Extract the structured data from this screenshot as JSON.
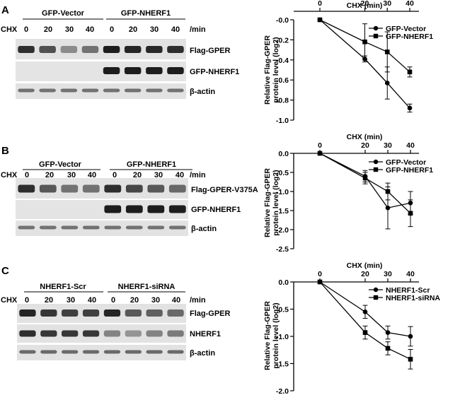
{
  "panels": [
    {
      "label": "A",
      "groups": [
        "GFP-Vector",
        "GFP-NHERF1"
      ],
      "cond_label": "CHX",
      "times": [
        "0",
        "20",
        "30",
        "40",
        "0",
        "20",
        "30",
        "40"
      ],
      "unit": "/min",
      "blots": [
        {
          "label": "Flag-GPER",
          "bg": "#e2e2e2",
          "intensities": [
            0.85,
            0.65,
            0.3,
            0.45,
            0.95,
            0.9,
            0.88,
            0.85
          ]
        },
        {
          "label": "GFP-NHERF1",
          "bg": "#e4e4e4",
          "intensities": [
            0,
            0,
            0,
            0,
            0.95,
            0.95,
            0.95,
            0.95
          ]
        },
        {
          "label": "β-actin",
          "bg": "#e2e2e2",
          "intensities": [
            0.45,
            0.45,
            0.45,
            0.45,
            0.45,
            0.45,
            0.45,
            0.45
          ]
        }
      ]
    },
    {
      "label": "B",
      "groups": [
        "GFP-Vector",
        "GFP-NHERF1"
      ],
      "cond_label": "CHX",
      "times": [
        "0",
        "20",
        "30",
        "40",
        "0",
        "20",
        "30",
        "40"
      ],
      "unit": "/min",
      "blots": [
        {
          "label": "Flag-GPER-V375A",
          "bg": "#e2e2e2",
          "intensities": [
            0.85,
            0.6,
            0.45,
            0.45,
            0.85,
            0.7,
            0.6,
            0.5
          ]
        },
        {
          "label": "GFP-NHERF1",
          "bg": "#e4e4e4",
          "intensities": [
            0,
            0,
            0,
            0,
            0.95,
            0.95,
            0.95,
            0.95
          ]
        },
        {
          "label": "β-actin",
          "bg": "#e2e2e2",
          "intensities": [
            0.45,
            0.45,
            0.45,
            0.45,
            0.45,
            0.45,
            0.45,
            0.45
          ]
        }
      ]
    },
    {
      "label": "C",
      "groups": [
        "NHERF1-Scr",
        "NHERF1-siRNA"
      ],
      "cond_label": "CHX",
      "times": [
        "0",
        "20",
        "30",
        "40",
        "0",
        "20",
        "30",
        "40"
      ],
      "unit": "/min",
      "blots": [
        {
          "label": "Flag-GPER",
          "bg": "#e2e2e2",
          "intensities": [
            0.9,
            0.8,
            0.75,
            0.75,
            0.9,
            0.6,
            0.55,
            0.5
          ]
        },
        {
          "label": "NHERF1",
          "bg": "#e2e2e2",
          "intensities": [
            0.85,
            0.8,
            0.8,
            0.8,
            0.35,
            0.25,
            0.35,
            0.4
          ]
        },
        {
          "label": "β-actin",
          "bg": "#e2e2e2",
          "intensities": [
            0.5,
            0.5,
            0.5,
            0.5,
            0.5,
            0.5,
            0.5,
            0.5
          ]
        }
      ]
    }
  ],
  "chart_data": [
    {
      "type": "line",
      "title": "",
      "xlabel": "CHX (min)",
      "ylabel": "Relative  Flag-GPER protein level (log2)",
      "x": [
        0,
        20,
        30,
        40
      ],
      "xlim": [
        0,
        40
      ],
      "ylim": [
        -1.0,
        0.0
      ],
      "yticks": [
        -0.0,
        -0.2,
        -0.4,
        -0.6,
        -0.8,
        -1.0
      ],
      "ytick_labels": [
        "-0.0",
        "-0.2",
        "-0.4",
        "-0.6",
        "-0.8",
        "-1.0"
      ],
      "legend_position": "top-right",
      "grid": false,
      "series": [
        {
          "name": "GFP-Vector",
          "marker": "circle",
          "values": [
            0,
            -0.39,
            -0.63,
            -0.88
          ],
          "errors": [
            0,
            0.03,
            0.16,
            0.04
          ]
        },
        {
          "name": "GFP-NHERF1",
          "marker": "square",
          "values": [
            0,
            -0.22,
            -0.32,
            -0.52
          ],
          "errors": [
            0,
            0.18,
            0.2,
            0.05
          ]
        }
      ]
    },
    {
      "type": "line",
      "title": "",
      "xlabel": "CHX (min)",
      "ylabel": "Relative  Flag-GPER protein level (log2)",
      "x": [
        0,
        20,
        30,
        40
      ],
      "xlim": [
        0,
        40
      ],
      "ylim": [
        -2.5,
        0.0
      ],
      "yticks": [
        0.0,
        -0.5,
        -1.0,
        -1.5,
        -2.0,
        -2.5
      ],
      "ytick_labels": [
        "0.0",
        "-0.5",
        "-1.0",
        "-1.5",
        "-2.0",
        "-2.5"
      ],
      "legend_position": "top-right",
      "grid": false,
      "series": [
        {
          "name": "GFP-Vector",
          "marker": "circle",
          "values": [
            0,
            -0.6,
            -1.43,
            -1.3
          ],
          "errors": [
            0,
            0.15,
            0.55,
            0.3
          ]
        },
        {
          "name": "GFP-NHERF1",
          "marker": "square",
          "values": [
            0,
            -0.65,
            -1.0,
            -1.57
          ],
          "errors": [
            0,
            0.15,
            0.22,
            0.35
          ]
        }
      ]
    },
    {
      "type": "line",
      "title": "",
      "xlabel": "CHX (min)",
      "ylabel": "Relative  Flag-GPER protein level (log2)",
      "x": [
        0,
        20,
        30,
        40
      ],
      "xlim": [
        0,
        40
      ],
      "ylim": [
        -2.0,
        0.0
      ],
      "yticks": [
        0.0,
        -0.5,
        -1.0,
        -1.5,
        -2.0
      ],
      "ytick_labels": [
        "0.0",
        "-0.5",
        "-1.0",
        "-1.5",
        "-2.0"
      ],
      "legend_position": "top-right",
      "grid": false,
      "series": [
        {
          "name": "NHERF1-Scr",
          "marker": "circle",
          "values": [
            0,
            -0.55,
            -0.93,
            -1.0
          ],
          "errors": [
            0,
            0.12,
            0.12,
            0.18
          ]
        },
        {
          "name": "NHERF1-siRNA",
          "marker": "square",
          "values": [
            0,
            -0.93,
            -1.22,
            -1.42
          ],
          "errors": [
            0,
            0.12,
            0.12,
            0.18
          ]
        }
      ]
    }
  ]
}
